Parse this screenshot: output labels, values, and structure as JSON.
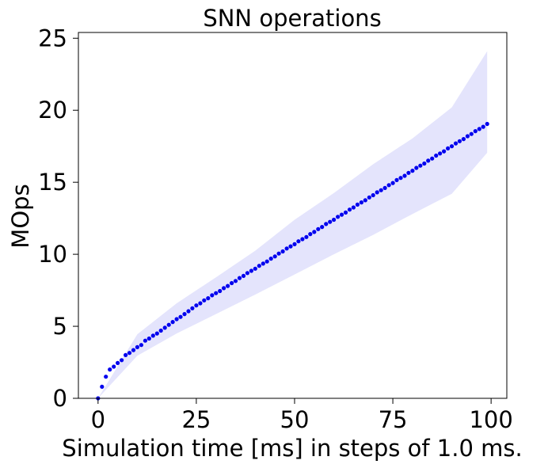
{
  "chart_data": {
    "type": "scatter",
    "title": "SNN operations",
    "xlabel": "Simulation time [ms] in steps of 1.0 ms.",
    "ylabel": "MOps",
    "xlim": [
      -5,
      104
    ],
    "ylim": [
      0,
      25.4
    ],
    "xticks": [
      0,
      25,
      50,
      75,
      100
    ],
    "yticks": [
      0,
      5,
      10,
      15,
      20,
      25
    ],
    "grid": false,
    "series": [
      {
        "marker": "dot",
        "color": "#0000ee",
        "x": [
          0,
          1,
          2,
          3,
          4,
          5,
          6,
          7,
          8,
          9,
          10,
          11,
          12,
          13,
          14,
          15,
          16,
          17,
          18,
          19,
          20,
          21,
          22,
          23,
          24,
          25,
          26,
          27,
          28,
          29,
          30,
          31,
          32,
          33,
          34,
          35,
          36,
          37,
          38,
          39,
          40,
          41,
          42,
          43,
          44,
          45,
          46,
          47,
          48,
          49,
          50,
          51,
          52,
          53,
          54,
          55,
          56,
          57,
          58,
          59,
          60,
          61,
          62,
          63,
          64,
          65,
          66,
          67,
          68,
          69,
          70,
          71,
          72,
          73,
          74,
          75,
          76,
          77,
          78,
          79,
          80,
          81,
          82,
          83,
          84,
          85,
          86,
          87,
          88,
          89,
          90,
          91,
          92,
          93,
          94,
          95,
          96,
          97,
          98,
          99
        ],
        "y": [
          0,
          0.8,
          1.5,
          2.0,
          2.2,
          2.45,
          2.65,
          3.0,
          3.15,
          3.35,
          3.55,
          3.7,
          4.0,
          4.15,
          4.35,
          4.5,
          4.7,
          4.9,
          5.1,
          5.3,
          5.5,
          5.65,
          5.85,
          6.05,
          6.25,
          6.45,
          6.6,
          6.8,
          6.95,
          7.15,
          7.3,
          7.45,
          7.65,
          7.8,
          8.0,
          8.15,
          8.35,
          8.5,
          8.7,
          8.85,
          9.0,
          9.2,
          9.35,
          9.5,
          9.7,
          9.85,
          10.05,
          10.2,
          10.4,
          10.55,
          10.7,
          10.9,
          11.05,
          11.2,
          11.4,
          11.55,
          11.75,
          11.9,
          12.1,
          12.25,
          12.4,
          12.6,
          12.75,
          12.9,
          13.1,
          13.25,
          13.45,
          13.6,
          13.75,
          13.95,
          14.1,
          14.3,
          14.45,
          14.6,
          14.8,
          14.95,
          15.15,
          15.3,
          15.45,
          15.65,
          15.8,
          16.0,
          16.15,
          16.3,
          16.5,
          16.65,
          16.85,
          17.0,
          17.15,
          17.35,
          17.5,
          17.7,
          17.85,
          18.0,
          18.2,
          18.35,
          18.55,
          18.7,
          18.85,
          19.05
        ]
      }
    ],
    "band": {
      "color": "#e4e4fc",
      "x": [
        0,
        10,
        20,
        30,
        40,
        50,
        60,
        70,
        80,
        90,
        99
      ],
      "lower": [
        0,
        2.95,
        4.5,
        5.85,
        7.2,
        8.6,
        10.0,
        11.35,
        12.8,
        14.2,
        17.05
      ],
      "upper": [
        0,
        4.45,
        6.6,
        8.4,
        10.25,
        12.4,
        14.25,
        16.25,
        18.05,
        20.2,
        24.1
      ]
    }
  }
}
